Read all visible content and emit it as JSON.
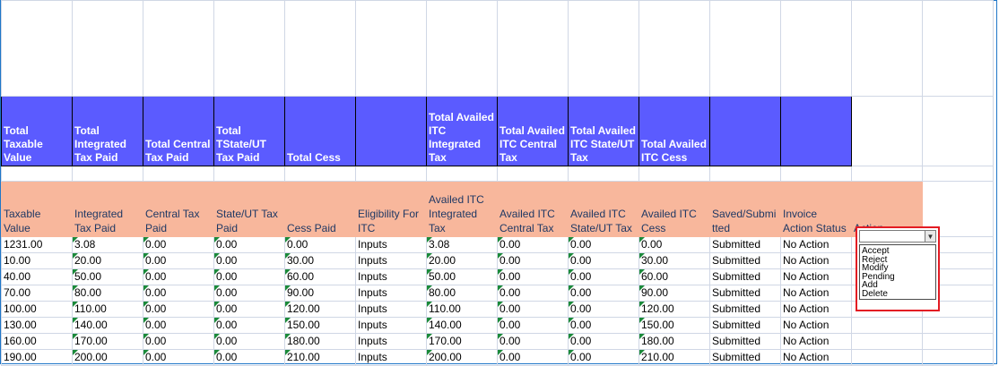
{
  "summary_headers": [
    "Total Taxable Value",
    "Total Integrated Tax Paid",
    "Total Central Tax Paid",
    "Total TState/UT Tax Paid",
    "Total Cess",
    "",
    "Total Availed ITC Integrated Tax",
    "Total Availed ITC Central Tax",
    "Total Availed ITC State/UT Tax",
    "Total Availed ITC Cess",
    "",
    ""
  ],
  "detail_headers": [
    "Taxable Value",
    "Integrated Tax Paid",
    "Central Tax Paid",
    "State/UT Tax Paid",
    "Cess Paid",
    "Eligibility For ITC",
    "Availed ITC Integrated Tax",
    "Availed ITC Central Tax",
    "Availed ITC State/UT Tax",
    "Availed ITC Cess",
    "Saved/Submi tted",
    "Invoice Action Status",
    "Action"
  ],
  "rows": [
    [
      "1231.00",
      "3.08",
      "0.00",
      "0.00",
      "0.00",
      "Inputs",
      "3.08",
      "0.00",
      "0.00",
      "0.00",
      "Submitted",
      "No Action"
    ],
    [
      "10.00",
      "20.00",
      "0.00",
      "0.00",
      "30.00",
      "Inputs",
      "20.00",
      "0.00",
      "0.00",
      "30.00",
      "Submitted",
      "No Action"
    ],
    [
      "40.00",
      "50.00",
      "0.00",
      "0.00",
      "60.00",
      "Inputs",
      "50.00",
      "0.00",
      "0.00",
      "60.00",
      "Submitted",
      "No Action"
    ],
    [
      "70.00",
      "80.00",
      "0.00",
      "0.00",
      "90.00",
      "Inputs",
      "80.00",
      "0.00",
      "0.00",
      "90.00",
      "Submitted",
      "No Action"
    ],
    [
      "100.00",
      "110.00",
      "0.00",
      "0.00",
      "120.00",
      "Inputs",
      "110.00",
      "0.00",
      "0.00",
      "120.00",
      "Submitted",
      "No Action"
    ],
    [
      "130.00",
      "140.00",
      "0.00",
      "0.00",
      "150.00",
      "Inputs",
      "140.00",
      "0.00",
      "0.00",
      "150.00",
      "Submitted",
      "No Action"
    ],
    [
      "160.00",
      "170.00",
      "0.00",
      "0.00",
      "180.00",
      "Inputs",
      "170.00",
      "0.00",
      "0.00",
      "180.00",
      "Submitted",
      "No Action"
    ],
    [
      "190.00",
      "200.00",
      "0.00",
      "0.00",
      "210.00",
      "Inputs",
      "200.00",
      "0.00",
      "0.00",
      "210.00",
      "Submitted",
      "No Action"
    ]
  ],
  "action_dropdown": {
    "selected": "",
    "icon": "chevron-down-icon",
    "options": [
      "Accept",
      "Reject",
      "Modify",
      "Pending",
      "Add",
      "Delete"
    ]
  },
  "colors": {
    "summary_header_bg": "#5b5bff",
    "detail_header_bg": "#f8b79c",
    "dropdown_highlight_border": "#e31b23",
    "number_marker": "#1b8a3a"
  }
}
